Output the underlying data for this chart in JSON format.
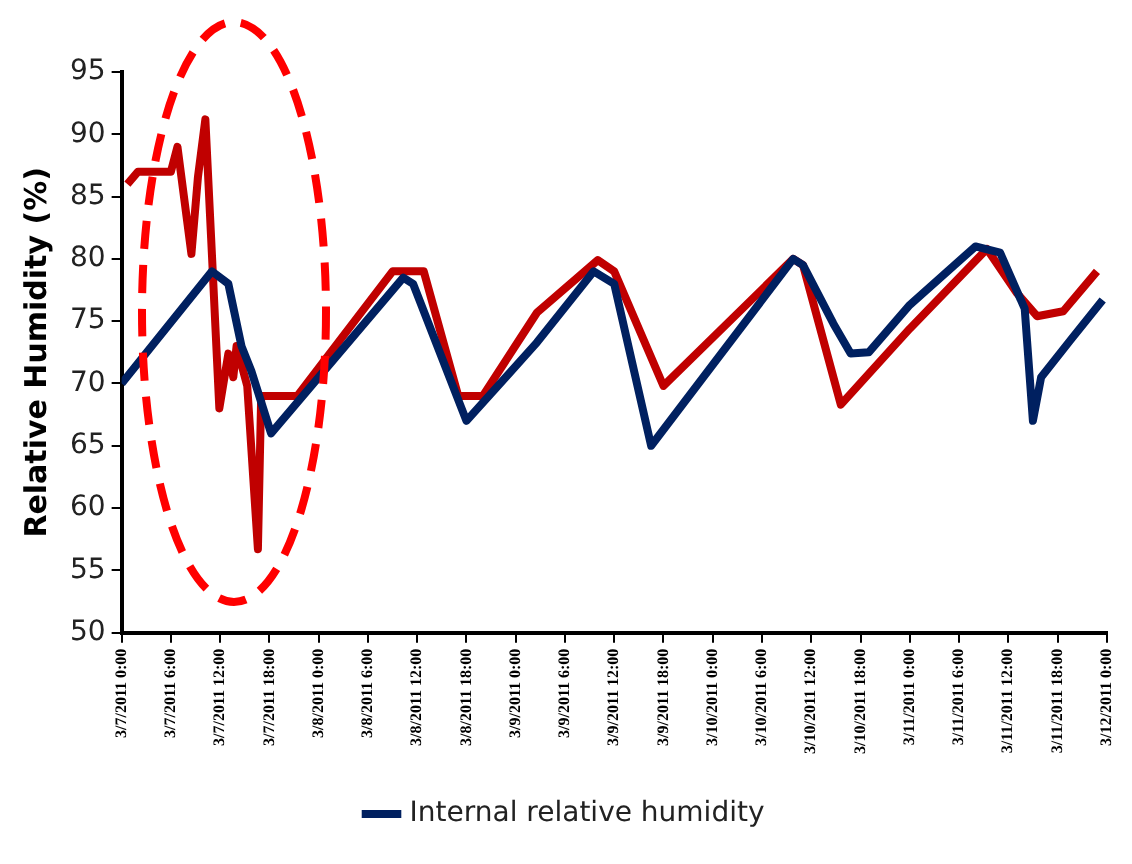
{
  "chart_data": {
    "type": "line",
    "ylabel": "Relative Humidity (%)",
    "legend": "bottom",
    "grid": false,
    "marker": "none",
    "line_style": "solid",
    "xlim": [
      "2011-03-07T00:00",
      "2011-03-12T00:00"
    ],
    "ylim": [
      50,
      95
    ],
    "yticks": [
      50,
      55,
      60,
      65,
      70,
      75,
      80,
      85,
      90,
      95
    ],
    "xticks": [
      {
        "value": "2011-03-07T00:00",
        "label": "3/7/2011 0:00"
      },
      {
        "value": "2011-03-07T06:00",
        "label": "3/7/2011 6:00"
      },
      {
        "value": "2011-03-07T12:00",
        "label": "3/7/2011 12:00"
      },
      {
        "value": "2011-03-07T18:00",
        "label": "3/7/2011 18:00"
      },
      {
        "value": "2011-03-08T00:00",
        "label": "3/8/2011 0:00"
      },
      {
        "value": "2011-03-08T06:00",
        "label": "3/8/2011 6:00"
      },
      {
        "value": "2011-03-08T12:00",
        "label": "3/8/2011 12:00"
      },
      {
        "value": "2011-03-08T18:00",
        "label": "3/8/2011 18:00"
      },
      {
        "value": "2011-03-09T00:00",
        "label": "3/9/2011 0:00"
      },
      {
        "value": "2011-03-09T06:00",
        "label": "3/9/2011 6:00"
      },
      {
        "value": "2011-03-09T12:00",
        "label": "3/9/2011 12:00"
      },
      {
        "value": "2011-03-09T18:00",
        "label": "3/9/2011 18:00"
      },
      {
        "value": "2011-03-10T00:00",
        "label": "3/10/2011 0:00"
      },
      {
        "value": "2011-03-10T06:00",
        "label": "3/10/2011 6:00"
      },
      {
        "value": "2011-03-10T12:00",
        "label": "3/10/2011 12:00"
      },
      {
        "value": "2011-03-10T18:00",
        "label": "3/10/2011 18:00"
      },
      {
        "value": "2011-03-11T00:00",
        "label": "3/11/2011 0:00"
      },
      {
        "value": "2011-03-11T06:00",
        "label": "3/11/2011 6:00"
      },
      {
        "value": "2011-03-11T12:00",
        "label": "3/11/2011 12:00"
      },
      {
        "value": "2011-03-11T18:00",
        "label": "3/11/2011 18:00"
      },
      {
        "value": "2011-03-12T00:00",
        "label": "3/12/2011 0:00"
      }
    ],
    "series": [
      {
        "name": "Internal relative humidity",
        "color": "#002060",
        "x": [
          "2011-03-07T00:00",
          "2011-03-07T11:00",
          "2011-03-07T13:00",
          "2011-03-07T14:36",
          "2011-03-07T15:48",
          "2011-03-07T18:12",
          "2011-03-08T10:18",
          "2011-03-08T11:30",
          "2011-03-08T18:00",
          "2011-03-09T02:36",
          "2011-03-09T09:30",
          "2011-03-09T12:00",
          "2011-03-09T16:30",
          "2011-03-10T09:48",
          "2011-03-10T11:00",
          "2011-03-10T14:42",
          "2011-03-10T16:48",
          "2011-03-10T19:00",
          "2011-03-11T00:00",
          "2011-03-11T08:00",
          "2011-03-11T11:00",
          "2011-03-11T14:00",
          "2011-03-11T15:00",
          "2011-03-11T16:00",
          "2011-03-11T19:36",
          "2011-03-11T23:30"
        ],
        "values": [
          70,
          79,
          78,
          73,
          71,
          66,
          78.5,
          78,
          67,
          73.3,
          79,
          78,
          65,
          80,
          79.5,
          74.8,
          72.4,
          72.5,
          76.3,
          81,
          80.5,
          76,
          67,
          70.5,
          73.5,
          76.7
        ]
      },
      {
        "color": "#c00000",
        "x": [
          "2011-03-07T00:42",
          "2011-03-07T02:00",
          "2011-03-07T06:00",
          "2011-03-07T06:48",
          "2011-03-07T08:30",
          "2011-03-07T09:18",
          "2011-03-07T10:12",
          "2011-03-07T10:54",
          "2011-03-07T11:54",
          "2011-03-07T13:00",
          "2011-03-07T13:36",
          "2011-03-07T14:00",
          "2011-03-07T15:18",
          "2011-03-07T16:36",
          "2011-03-07T17:00",
          "2011-03-07T21:24",
          "2011-03-08T09:00",
          "2011-03-08T12:48",
          "2011-03-08T17:00",
          "2011-03-08T20:00",
          "2011-03-09T02:36",
          "2011-03-09T10:00",
          "2011-03-09T12:00",
          "2011-03-09T18:00",
          "2011-03-10T09:48",
          "2011-03-10T11:00",
          "2011-03-10T15:36",
          "2011-03-11T00:00",
          "2011-03-11T09:24",
          "2011-03-11T13:00",
          "2011-03-11T15:30",
          "2011-03-11T18:42",
          "2011-03-11T22:48"
        ],
        "values": [
          86,
          87,
          87,
          89,
          80.4,
          86.6,
          91.2,
          81.7,
          68,
          72.4,
          70.5,
          73,
          69.8,
          56.7,
          69,
          69,
          79,
          79,
          69,
          69,
          75.7,
          79.9,
          79,
          69.8,
          80,
          79.5,
          68.3,
          74.4,
          80.8,
          77.3,
          75.4,
          75.8,
          79
        ]
      }
    ]
  }
}
